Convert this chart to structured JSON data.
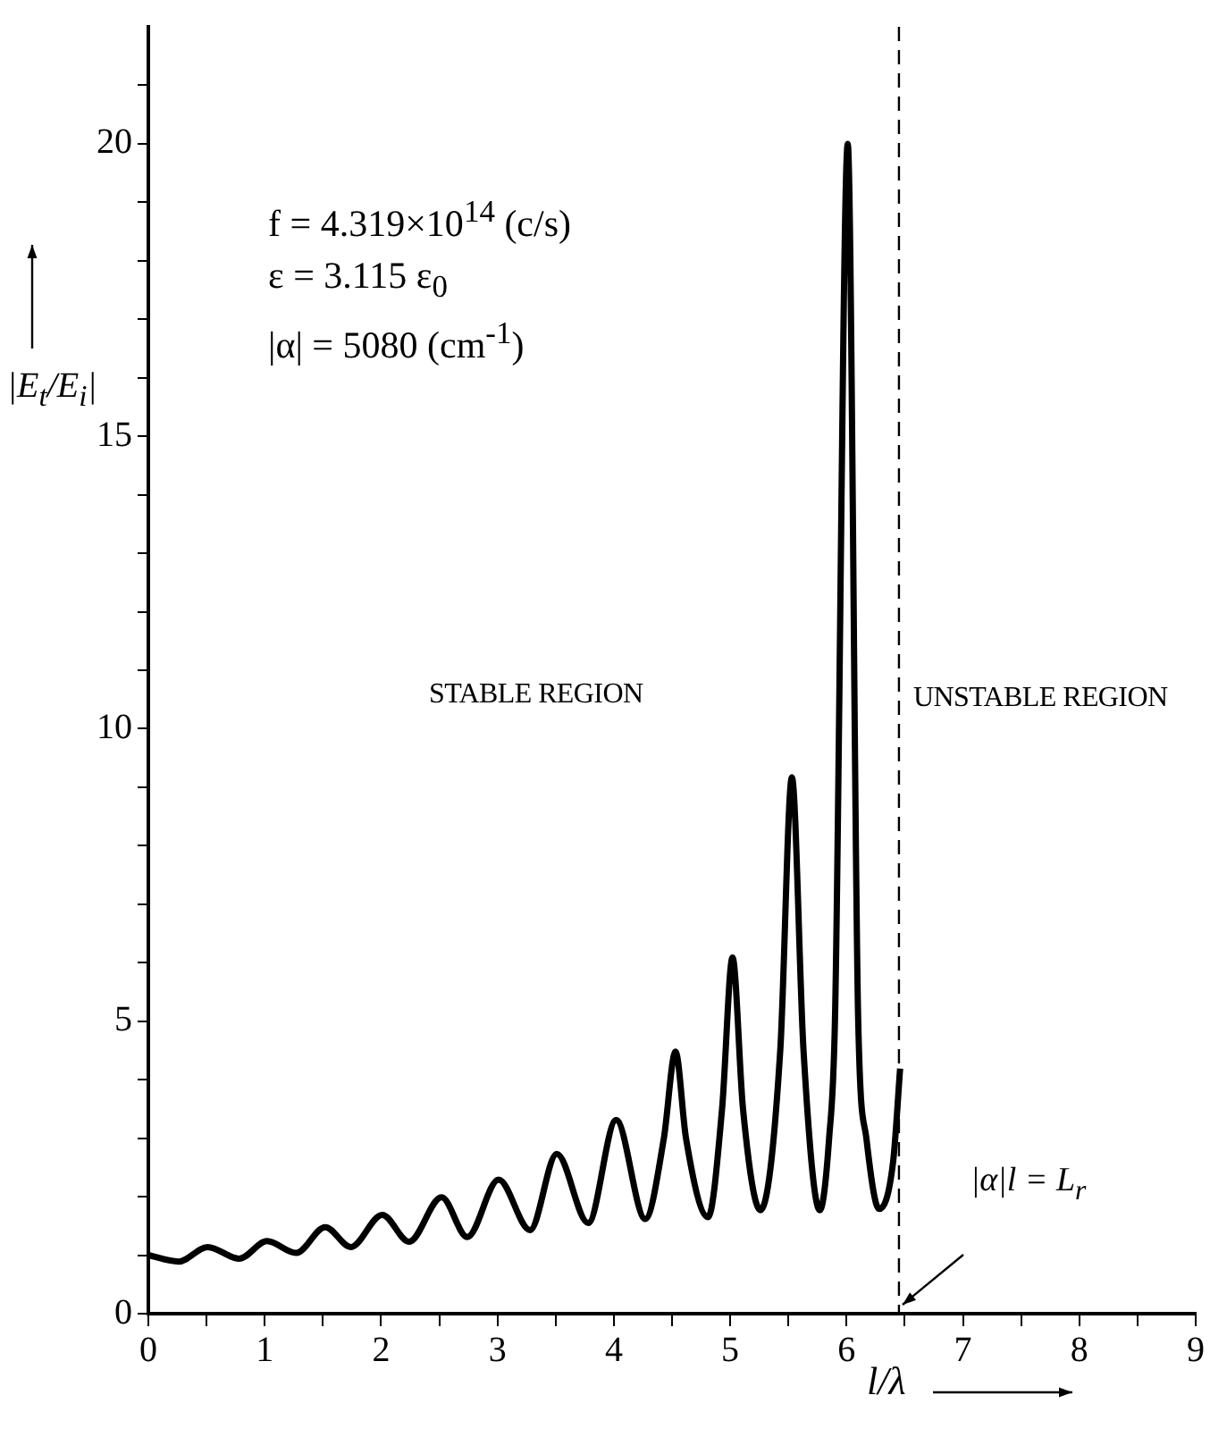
{
  "chart_data": {
    "type": "line",
    "xlabel": "l/λ",
    "ylabel": "|E$_{t}$/E$_{i}$|",
    "x": [
      0,
      0.26,
      0.51,
      0.78,
      1.02,
      1.27,
      1.52,
      1.74,
      2.01,
      2.24,
      2.52,
      2.74,
      3.01,
      3.28,
      3.51,
      3.78,
      4.02,
      4.27,
      4.43,
      4.53,
      4.62,
      4.81,
      4.93,
      5.02,
      5.11,
      5.26,
      5.43,
      5.53,
      5.63,
      5.77,
      5.85,
      5.9,
      6.01,
      6.1,
      6.17,
      6.28,
      6.4,
      6.46
    ],
    "series": [
      {
        "color": "#000000",
        "values": [
          1.0,
          0.89,
          1.14,
          0.94,
          1.24,
          1.04,
          1.48,
          1.14,
          1.69,
          1.23,
          1.99,
          1.31,
          2.29,
          1.43,
          2.73,
          1.55,
          3.31,
          1.62,
          3.0,
          4.48,
          3.0,
          1.65,
          3.5,
          6.09,
          3.5,
          1.77,
          4.5,
          9.17,
          4.5,
          1.77,
          3.0,
          5.0,
          20.0,
          5.0,
          3.0,
          1.79,
          2.6,
          4.19
        ]
      }
    ],
    "xlim": [
      0,
      9
    ],
    "ylim": [
      0,
      22
    ],
    "xticks": [
      0,
      {
        "value": 0.5,
        "label": null
      },
      1,
      {
        "value": 1.5,
        "label": null
      },
      2,
      {
        "value": 2.5,
        "label": null
      },
      3,
      {
        "value": 3.5,
        "label": null
      },
      4,
      {
        "value": 4.5,
        "label": null
      },
      5,
      {
        "value": 5.5,
        "label": null
      },
      6,
      {
        "value": 6.5,
        "label": null
      },
      7,
      {
        "value": 7.5,
        "label": null
      },
      8,
      {
        "value": 8.5,
        "label": null
      },
      9
    ],
    "yticks": [
      0,
      {
        "value": 1,
        "label": null
      },
      {
        "value": 2,
        "label": null
      },
      {
        "value": 3,
        "label": null
      },
      {
        "value": 4,
        "label": null
      },
      5,
      {
        "value": 6,
        "label": null
      },
      {
        "value": 7,
        "label": null
      },
      {
        "value": 8,
        "label": null
      },
      {
        "value": 9,
        "label": null
      },
      10,
      {
        "value": 11,
        "label": null
      },
      {
        "value": 12,
        "label": null
      },
      {
        "value": 13,
        "label": null
      },
      {
        "value": 14,
        "label": null
      },
      15,
      {
        "value": 16,
        "label": null
      },
      {
        "value": 17,
        "label": null
      },
      {
        "value": 18,
        "label": null
      },
      {
        "value": 19,
        "label": null
      },
      20,
      {
        "value": 21,
        "label": null
      }
    ],
    "ref_lines": [
      {
        "axis": "x",
        "value": 6.45,
        "label": "|α|l = L$_{r}$",
        "line_style": "dashed",
        "color": "#000000"
      }
    ],
    "annotations": [
      "f = 4.319×10$^{14}$ (c/s)",
      "ε = 3.115 ε$_{0}$",
      "|α| = 5080 (cm$^{-1}$)",
      "STABLE REGION",
      "UNSTABLE REGION"
    ],
    "marker": "none",
    "line_style": "solid",
    "legend": false
  }
}
